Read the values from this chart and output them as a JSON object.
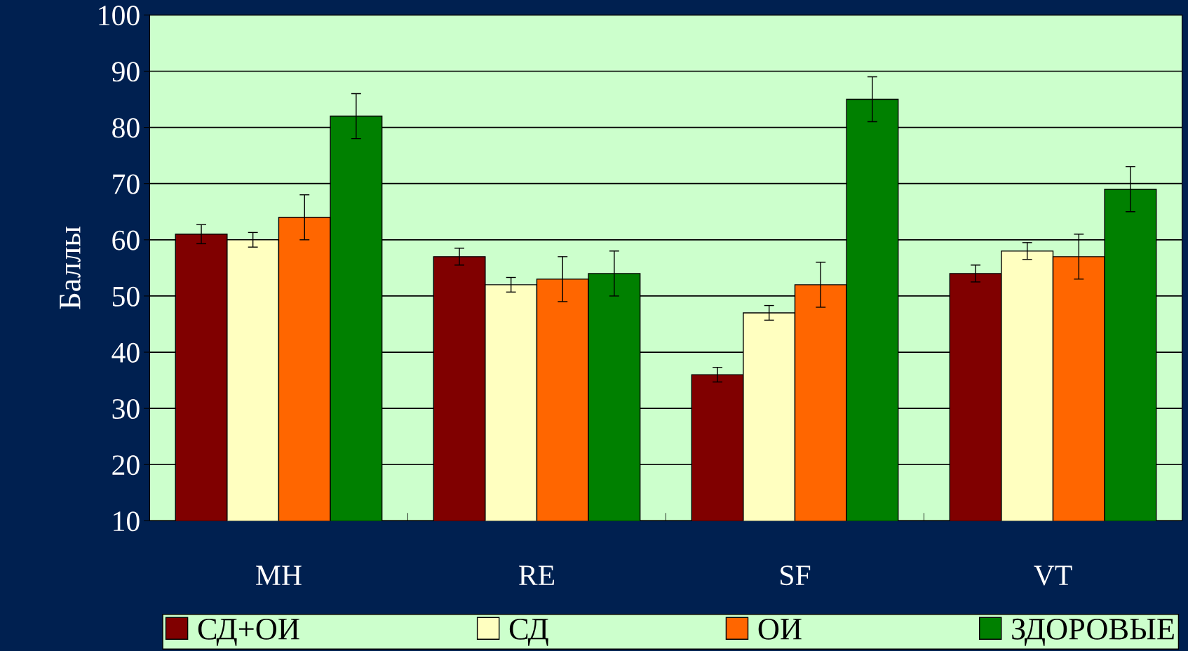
{
  "chart_data": {
    "type": "bar",
    "ylabel": "Баллы",
    "categories": [
      "MH",
      "RE",
      "SF",
      "VT"
    ],
    "series": [
      {
        "name": "СД+ОИ",
        "color": "#800000",
        "values": [
          61,
          57,
          36,
          54
        ],
        "errors": [
          1.7,
          1.5,
          1.3,
          1.5
        ]
      },
      {
        "name": "СД",
        "color": "#ffffc0",
        "values": [
          60,
          52,
          47,
          58
        ],
        "errors": [
          1.3,
          1.3,
          1.3,
          1.5
        ]
      },
      {
        "name": "ОИ",
        "color": "#ff6600",
        "values": [
          64,
          53,
          52,
          57
        ],
        "errors": [
          4,
          4,
          4,
          4
        ]
      },
      {
        "name": "ЗДОРОВЫЕ",
        "color": "#008000",
        "values": [
          82,
          54,
          85,
          69
        ],
        "errors": [
          4,
          4,
          4,
          4
        ]
      }
    ],
    "ylim": [
      10,
      100
    ],
    "yticks": [
      10,
      20,
      30,
      40,
      50,
      60,
      70,
      80,
      90,
      100
    ],
    "grid": "y",
    "legend": "bottom"
  }
}
